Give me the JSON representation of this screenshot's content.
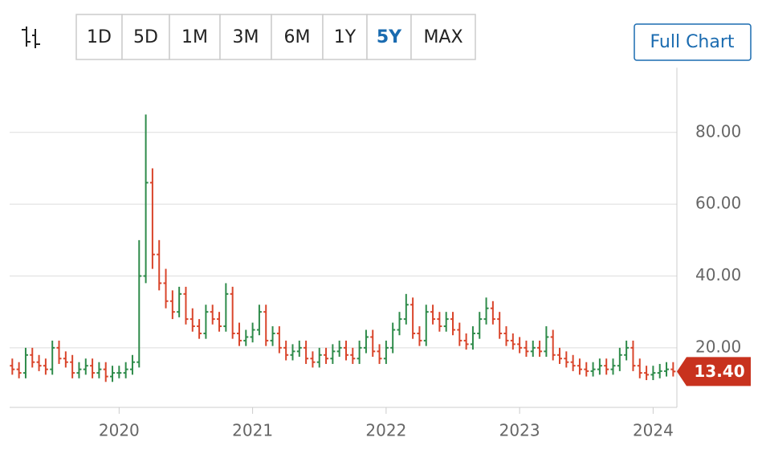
{
  "toolbar": {
    "ranges": [
      "1D",
      "5D",
      "1M",
      "3M",
      "6M",
      "1Y",
      "5Y",
      "MAX"
    ],
    "active_index": 6,
    "full_chart": "Full Chart"
  },
  "chart_data": {
    "type": "ohlc",
    "x": [
      2019.2,
      2019.25,
      2019.3,
      2019.35,
      2019.4,
      2019.45,
      2019.5,
      2019.55,
      2019.6,
      2019.65,
      2019.7,
      2019.75,
      2019.8,
      2019.85,
      2019.9,
      2019.95,
      2020.0,
      2020.05,
      2020.1,
      2020.15,
      2020.2,
      2020.25,
      2020.3,
      2020.35,
      2020.4,
      2020.45,
      2020.5,
      2020.55,
      2020.6,
      2020.65,
      2020.7,
      2020.75,
      2020.8,
      2020.85,
      2020.9,
      2020.95,
      2021.0,
      2021.05,
      2021.1,
      2021.15,
      2021.2,
      2021.25,
      2021.3,
      2021.35,
      2021.4,
      2021.45,
      2021.5,
      2021.55,
      2021.6,
      2021.65,
      2021.7,
      2021.75,
      2021.8,
      2021.85,
      2021.9,
      2021.95,
      2022.0,
      2022.05,
      2022.1,
      2022.15,
      2022.2,
      2022.25,
      2022.3,
      2022.35,
      2022.4,
      2022.45,
      2022.5,
      2022.55,
      2022.6,
      2022.65,
      2022.7,
      2022.75,
      2022.8,
      2022.85,
      2022.9,
      2022.95,
      2023.0,
      2023.05,
      2023.1,
      2023.15,
      2023.2,
      2023.25,
      2023.3,
      2023.35,
      2023.4,
      2023.45,
      2023.5,
      2023.55,
      2023.6,
      2023.65,
      2023.7,
      2023.75,
      2023.8,
      2023.85,
      2023.9,
      2023.95,
      2024.0,
      2024.05,
      2024.1,
      2024.15
    ],
    "open": [
      15,
      14,
      13,
      18,
      16,
      15,
      14,
      20,
      17,
      16,
      13,
      14,
      15,
      13,
      14,
      12,
      13,
      13,
      14,
      16,
      40,
      66,
      46,
      38,
      33,
      30,
      35,
      28,
      26,
      24,
      30,
      28,
      26,
      35,
      24,
      22,
      23,
      25,
      30,
      22,
      24,
      20,
      18,
      19,
      20,
      17,
      16,
      18,
      17,
      19,
      20,
      18,
      17,
      20,
      23,
      19,
      17,
      20,
      25,
      28,
      32,
      24,
      22,
      30,
      28,
      26,
      28,
      25,
      22,
      21,
      24,
      28,
      31,
      28,
      24,
      22,
      21,
      20,
      19,
      20,
      19,
      23,
      18,
      17,
      16,
      15,
      14,
      13.5,
      14,
      15,
      14,
      15,
      18,
      20,
      15,
      13,
      12.5,
      13,
      13.5,
      14
    ],
    "high": [
      17,
      16,
      20,
      20,
      18,
      17,
      22,
      22,
      19,
      18,
      16,
      17,
      17,
      16,
      16,
      15,
      15,
      16,
      18,
      50,
      85,
      70,
      50,
      42,
      36,
      37,
      37,
      31,
      28,
      32,
      32,
      30,
      38,
      37,
      27,
      25,
      27,
      32,
      32,
      26,
      26,
      22,
      21,
      22,
      22,
      19,
      20,
      20,
      21,
      22,
      22,
      20,
      22,
      25,
      25,
      21,
      22,
      27,
      30,
      35,
      34,
      26,
      32,
      32,
      30,
      30,
      30,
      27,
      24,
      26,
      30,
      34,
      33,
      30,
      26,
      24,
      23,
      22,
      22,
      22,
      26,
      25,
      20,
      19,
      18,
      17,
      16,
      16,
      17,
      17,
      17,
      20,
      22,
      22,
      17,
      15,
      15,
      15.5,
      16,
      16
    ],
    "low": [
      12.5,
      11.5,
      11.5,
      14.5,
      13.5,
      12.5,
      12.5,
      15.5,
      14.5,
      11.5,
      11.5,
      12.5,
      11.5,
      11.5,
      10.5,
      10.5,
      11.5,
      11.5,
      12.5,
      14.5,
      38,
      42,
      36,
      31,
      28,
      28.5,
      26.5,
      24.5,
      22.5,
      22.5,
      26.5,
      24.5,
      24.5,
      22.5,
      20.5,
      20.5,
      21.5,
      23.5,
      20.5,
      20.5,
      18.5,
      16.5,
      16.5,
      17.5,
      15.5,
      14.5,
      14.5,
      15.5,
      15.5,
      17.5,
      16.5,
      15.5,
      15.5,
      18.5,
      17.5,
      15.5,
      15.5,
      18.5,
      23.5,
      26.5,
      22.5,
      20.5,
      20.5,
      26.5,
      24.5,
      24.5,
      23.5,
      20.5,
      19.5,
      19.5,
      22.5,
      26.5,
      26.5,
      22.5,
      20.5,
      19.5,
      18.5,
      17.5,
      17.5,
      17.5,
      17.5,
      16.5,
      15.5,
      14.5,
      13.5,
      12.5,
      12,
      12,
      12.5,
      12.5,
      12.5,
      13.5,
      16.5,
      13.5,
      11.5,
      11,
      11,
      11.5,
      12,
      12
    ],
    "close": [
      14,
      13,
      18,
      16,
      15,
      14,
      20,
      17,
      16,
      13,
      14,
      15,
      13,
      14,
      12,
      13,
      13,
      14,
      16,
      40,
      66,
      46,
      38,
      33,
      30,
      35,
      28,
      26,
      24,
      30,
      28,
      26,
      35,
      24,
      22,
      23,
      25,
      30,
      22,
      24,
      20,
      18,
      19,
      20,
      17,
      16,
      18,
      17,
      19,
      20,
      18,
      17,
      20,
      23,
      19,
      17,
      20,
      25,
      28,
      32,
      24,
      22,
      30,
      28,
      26,
      28,
      25,
      22,
      21,
      24,
      28,
      31,
      28,
      24,
      22,
      21,
      20,
      19,
      20,
      19,
      23,
      18,
      17,
      16,
      15,
      14,
      13.5,
      14,
      15,
      14,
      15,
      18,
      20,
      15,
      13,
      12.5,
      13,
      13.5,
      14,
      13.4
    ],
    "up_color": "#2e8b4a",
    "down_color": "#d9452b",
    "xlim": [
      2019.18,
      2024.16
    ],
    "xticks": [
      2020,
      2021,
      2022,
      2023,
      2024
    ],
    "ylim": [
      3.4,
      98
    ],
    "yticks": [
      {
        "value": 20,
        "label": "20.00"
      },
      {
        "value": 40,
        "label": "40.00"
      },
      {
        "value": 60,
        "label": "60.00"
      },
      {
        "value": 80,
        "label": "80.00"
      }
    ],
    "grid": true,
    "last_price": {
      "value": 13.4,
      "label": "13.40",
      "color": "#c8321e"
    }
  }
}
